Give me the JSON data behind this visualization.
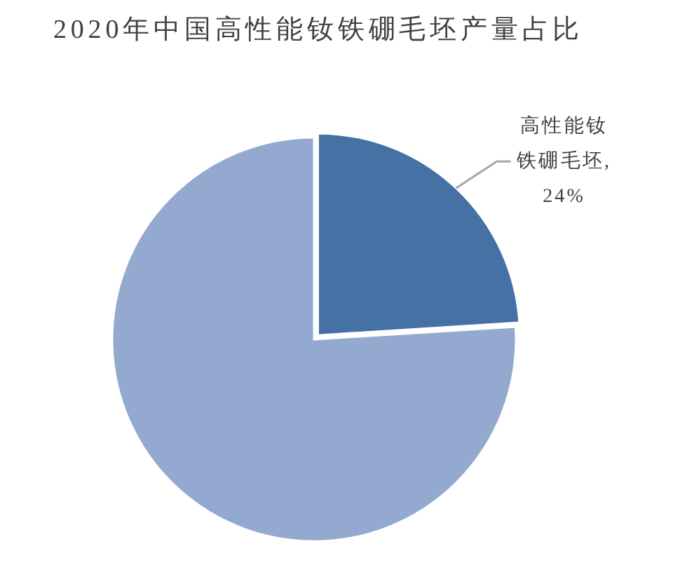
{
  "chart_data": {
    "type": "pie",
    "title": "2020年中国高性能钕铁硼毛坯产量占比",
    "categories": [
      null,
      null
    ],
    "values": [
      24,
      76
    ],
    "colors": [
      "#4671a5",
      "#93a9d0"
    ],
    "value_labels": [
      "高性能钕铁硼毛坯, 24%",
      null
    ]
  }
}
